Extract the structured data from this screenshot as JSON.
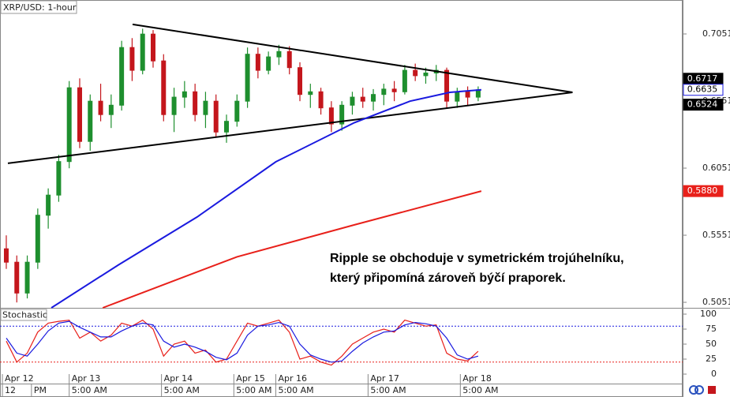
{
  "chart_data": {
    "type": "candlestick",
    "title": "XRP/USD: 1-hour",
    "annotation": [
      "Ripple se obchoduje v symetrickém trojúhelníku,",
      "který připomíná zároveň býčí praporek."
    ],
    "xlim": [
      -0.6,
      64.5
    ],
    "ylim": [
      0.501,
      0.7304
    ],
    "yticks": [
      0.7051,
      0.6551,
      0.6051,
      0.5551,
      0.5051
    ],
    "day_ticks": [
      {
        "value": -0.37,
        "label": "Apr 12"
      },
      {
        "value": 6.0,
        "label": "Apr 13"
      },
      {
        "value": 14.8,
        "label": "Apr 14"
      },
      {
        "value": 21.7,
        "label": "Apr 15"
      },
      {
        "value": 25.7,
        "label": "Apr 16"
      },
      {
        "value": 34.5,
        "label": "Apr 17"
      },
      {
        "value": 43.3,
        "label": "Apr 18"
      }
    ],
    "time_ticks": [
      {
        "value": -0.37,
        "label": "12"
      },
      {
        "value": 2.4,
        "label": "PM"
      },
      {
        "value": 6.0,
        "label": "5:00 AM"
      },
      {
        "value": 14.8,
        "label": "5:00 AM"
      },
      {
        "value": 21.7,
        "label": "5:00 AM"
      },
      {
        "value": 25.7,
        "label": "5:00 AM"
      },
      {
        "value": 34.5,
        "label": "5:00 AM"
      },
      {
        "value": 43.3,
        "label": "5:00 AM"
      }
    ],
    "up_color": "#1e8f2e",
    "down_color": "#c4161c",
    "open": [
      0.545,
      0.535,
      0.512,
      0.535,
      0.57,
      0.585,
      0.61,
      0.665,
      0.625,
      0.655,
      0.645,
      0.652,
      0.695,
      0.678,
      0.705,
      0.685,
      0.645,
      0.658,
      0.662,
      0.645,
      0.655,
      0.632,
      0.64,
      0.655,
      0.69,
      0.678,
      0.688,
      0.692,
      0.68,
      0.66,
      0.662,
      0.65,
      0.638,
      0.652,
      0.658,
      0.655,
      0.66,
      0.664,
      0.662,
      0.678,
      0.674,
      0.676,
      0.678,
      0.655,
      0.662,
      0.658
    ],
    "high": [
      0.555,
      0.54,
      0.54,
      0.575,
      0.59,
      0.615,
      0.67,
      0.672,
      0.66,
      0.668,
      0.66,
      0.7,
      0.702,
      0.709,
      0.708,
      0.69,
      0.665,
      0.67,
      0.668,
      0.662,
      0.66,
      0.645,
      0.66,
      0.695,
      0.695,
      0.692,
      0.697,
      0.696,
      0.684,
      0.668,
      0.665,
      0.655,
      0.655,
      0.662,
      0.665,
      0.664,
      0.668,
      0.67,
      0.682,
      0.683,
      0.68,
      0.682,
      0.68,
      0.665,
      0.666,
      0.666
    ],
    "low": [
      0.53,
      0.505,
      0.508,
      0.53,
      0.56,
      0.58,
      0.605,
      0.62,
      0.618,
      0.64,
      0.635,
      0.648,
      0.67,
      0.675,
      0.68,
      0.64,
      0.632,
      0.65,
      0.64,
      0.635,
      0.628,
      0.624,
      0.636,
      0.65,
      0.672,
      0.675,
      0.682,
      0.675,
      0.655,
      0.65,
      0.645,
      0.632,
      0.633,
      0.645,
      0.65,
      0.648,
      0.652,
      0.655,
      0.66,
      0.67,
      0.668,
      0.67,
      0.65,
      0.65,
      0.652,
      0.655
    ],
    "close": [
      0.535,
      0.512,
      0.535,
      0.57,
      0.585,
      0.61,
      0.665,
      0.625,
      0.655,
      0.645,
      0.652,
      0.695,
      0.678,
      0.705,
      0.685,
      0.645,
      0.658,
      0.662,
      0.645,
      0.655,
      0.632,
      0.64,
      0.655,
      0.69,
      0.678,
      0.688,
      0.692,
      0.68,
      0.66,
      0.662,
      0.65,
      0.638,
      0.652,
      0.658,
      0.655,
      0.66,
      0.664,
      0.662,
      0.678,
      0.674,
      0.676,
      0.678,
      0.655,
      0.662,
      0.658,
      0.6635
    ],
    "lines": [
      {
        "color": "#000000",
        "x": [
          0.15,
          54.0
        ],
        "values": [
          0.6087,
          0.6616
        ]
      },
      {
        "color": "#000000",
        "x": [
          12.04,
          54.0
        ],
        "values": [
          0.7122,
          0.6616
        ]
      },
      {
        "color": "#1a1adf",
        "x": [
          4.3,
          10.7,
          18.2,
          25.7,
          33.2,
          38.5,
          42.3,
          45.3
        ],
        "values": [
          0.501,
          0.533,
          0.5687,
          0.6098,
          0.639,
          0.655,
          0.6616,
          0.6635
        ]
      },
      {
        "color": "#e8201a",
        "x": [
          9.2,
          22.0,
          33.2,
          45.3
        ],
        "values": [
          0.501,
          0.539,
          0.5628,
          0.588
        ]
      }
    ],
    "price_tags": [
      {
        "value": 0.6717,
        "bg": "#000000",
        "fg": "#ffffff"
      },
      {
        "value": 0.6635,
        "label": "0.6635",
        "bg": "#ffffff",
        "fg": "#000000",
        "border": "#1a1adf"
      },
      {
        "value": 0.6524,
        "bg": "#000000",
        "fg": "#ffffff"
      },
      {
        "value": 0.588,
        "label": "0.5880",
        "bg": "#e8201a",
        "fg": "#ffffff"
      }
    ],
    "stochastic": {
      "title": "Stochastic",
      "ylim": [
        -15.8,
        107.9
      ],
      "yticks": [
        100,
        75,
        50,
        25,
        0
      ],
      "levels": [
        80,
        20
      ],
      "series": [
        {
          "color": "#e8201a",
          "values": [
            55,
            20,
            35,
            70,
            85,
            88,
            90,
            60,
            70,
            55,
            65,
            85,
            80,
            90,
            75,
            30,
            50,
            55,
            35,
            40,
            20,
            25,
            55,
            85,
            80,
            85,
            90,
            70,
            25,
            30,
            20,
            15,
            30,
            50,
            60,
            70,
            75,
            70,
            90,
            85,
            80,
            82,
            35,
            25,
            22,
            38
          ]
        },
        {
          "color": "#1a1adf",
          "values": [
            60,
            35,
            30,
            50,
            72,
            85,
            88,
            78,
            70,
            62,
            62,
            72,
            80,
            85,
            82,
            55,
            45,
            50,
            45,
            38,
            28,
            24,
            35,
            65,
            80,
            82,
            86,
            80,
            50,
            32,
            25,
            20,
            22,
            38,
            52,
            62,
            70,
            72,
            82,
            86,
            84,
            80,
            60,
            32,
            25,
            30
          ]
        }
      ]
    }
  }
}
